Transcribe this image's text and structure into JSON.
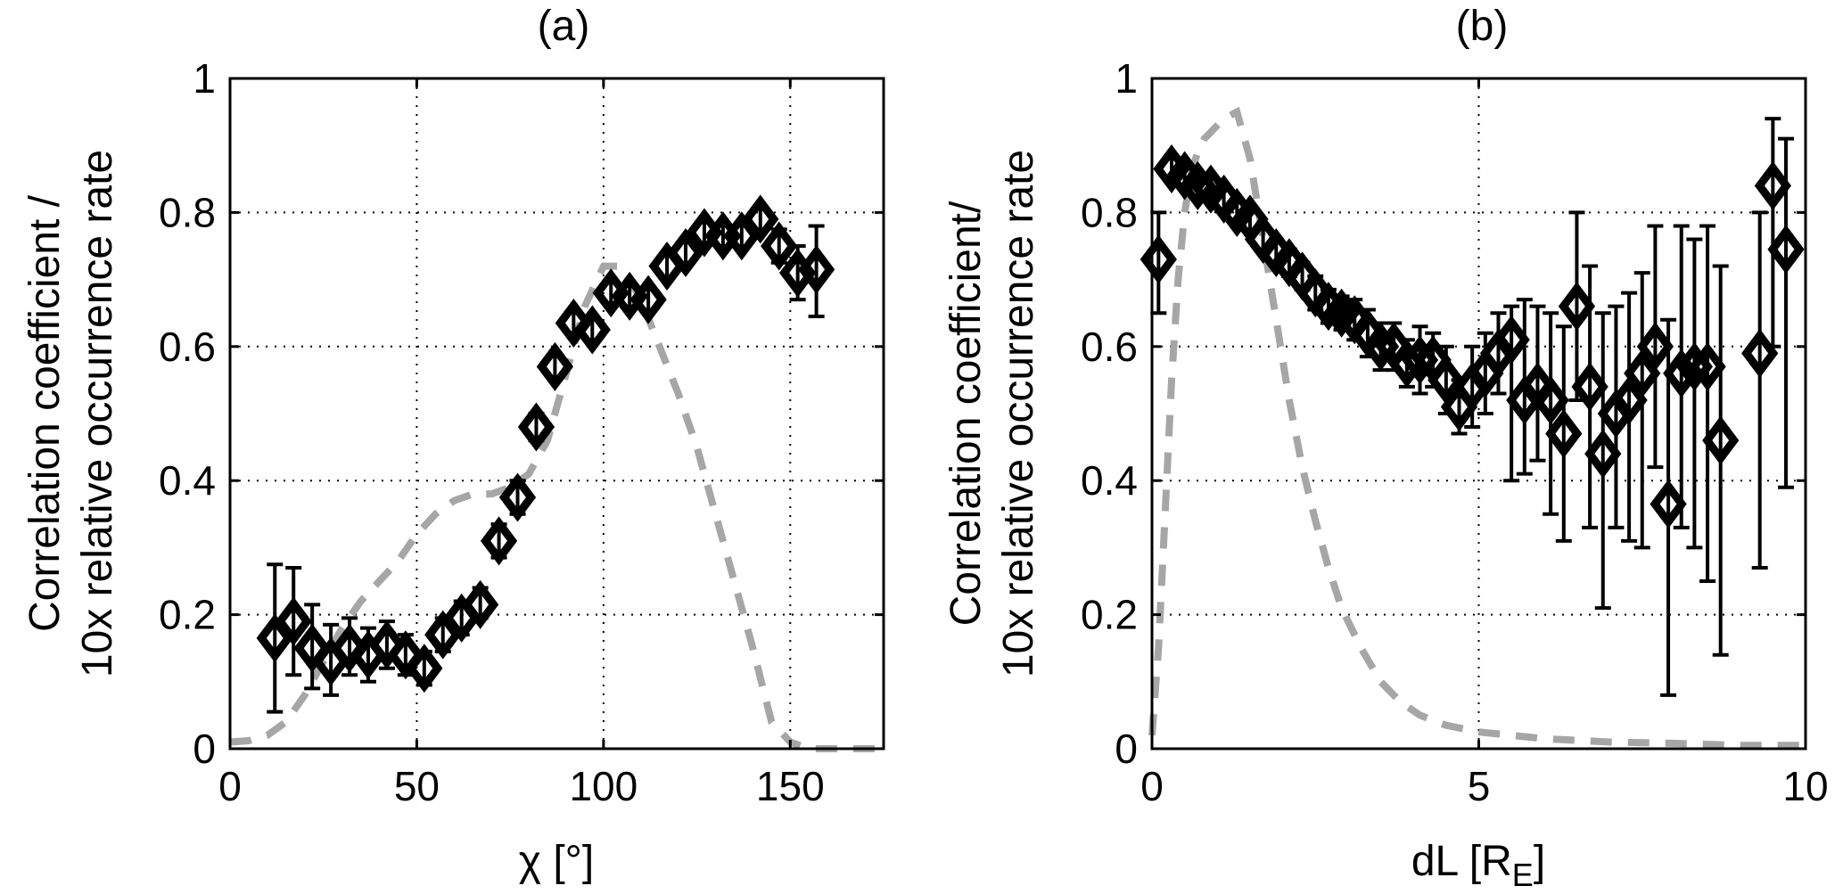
{
  "chart_data": [
    {
      "type": "scatter",
      "panel": "(a)",
      "title": "(a)",
      "xlabel": "χ [°]",
      "ylabel_line1": "Correlation coefficient /",
      "ylabel_line2": "10x relative occurrence rate",
      "xlim": [
        0,
        175
      ],
      "ylim": [
        0,
        1
      ],
      "x_ticks": [
        0,
        50,
        100,
        150
      ],
      "x_tick_labels": [
        "0",
        "50",
        "100",
        "150"
      ],
      "y_ticks": [
        0,
        0.2,
        0.4,
        0.6,
        0.8,
        1
      ],
      "y_tick_labels": [
        "0",
        "0.2",
        "0.4",
        "0.6",
        "0.8",
        "1"
      ],
      "grid": true,
      "series": [
        {
          "name": "correlation coefficient",
          "style": "diamond markers with error bars",
          "x": [
            12,
            17,
            22,
            27,
            32,
            37,
            42,
            47,
            52,
            57,
            62,
            67,
            72,
            77,
            82,
            87,
            92,
            97,
            102,
            107,
            112,
            117,
            122,
            127,
            132,
            137,
            142,
            147,
            152,
            157
          ],
          "y": [
            0.165,
            0.19,
            0.15,
            0.13,
            0.15,
            0.14,
            0.155,
            0.14,
            0.12,
            0.17,
            0.195,
            0.215,
            0.31,
            0.375,
            0.48,
            0.57,
            0.635,
            0.625,
            0.68,
            0.675,
            0.67,
            0.72,
            0.74,
            0.77,
            0.765,
            0.765,
            0.79,
            0.75,
            0.71,
            0.715
          ],
          "lower": [
            0.055,
            0.11,
            0.09,
            0.08,
            0.11,
            0.1,
            0.12,
            0.11,
            0.095,
            0.145,
            0.17,
            0.195,
            0.285,
            0.35,
            0.46,
            0.555,
            0.62,
            0.61,
            0.665,
            0.66,
            0.655,
            0.705,
            0.725,
            0.755,
            0.75,
            0.75,
            0.775,
            0.725,
            0.67,
            0.645
          ],
          "upper": [
            0.275,
            0.27,
            0.215,
            0.185,
            0.195,
            0.18,
            0.19,
            0.17,
            0.145,
            0.195,
            0.22,
            0.24,
            0.335,
            0.4,
            0.5,
            0.585,
            0.65,
            0.64,
            0.695,
            0.69,
            0.685,
            0.735,
            0.755,
            0.785,
            0.78,
            0.78,
            0.805,
            0.775,
            0.75,
            0.78
          ]
        },
        {
          "name": "10x relative occurrence rate",
          "style": "grey dashed line",
          "x": [
            0,
            5,
            10,
            15,
            20,
            25,
            30,
            35,
            40,
            45,
            50,
            55,
            60,
            65,
            70,
            75,
            80,
            85,
            90,
            95,
            100,
            105,
            110,
            115,
            120,
            125,
            130,
            135,
            140,
            145,
            150,
            155,
            160,
            165,
            170,
            175
          ],
          "y": [
            0.01,
            0.012,
            0.02,
            0.04,
            0.08,
            0.13,
            0.18,
            0.22,
            0.25,
            0.28,
            0.32,
            0.35,
            0.37,
            0.38,
            0.38,
            0.39,
            0.41,
            0.46,
            0.56,
            0.66,
            0.72,
            0.72,
            0.67,
            0.6,
            0.53,
            0.45,
            0.35,
            0.25,
            0.15,
            0.04,
            0.01,
            0.0,
            0.0,
            0.0,
            0.0,
            0.0
          ]
        }
      ]
    },
    {
      "type": "scatter",
      "panel": "(b)",
      "title": "(b)",
      "xlabel": "dL [R",
      "xlabel_sub": "E",
      "xlabel_suffix": "]",
      "ylabel_line1": "Correlation coefficient/",
      "ylabel_line2": "10x relative occurrence rate",
      "xlim": [
        0,
        10
      ],
      "ylim": [
        0,
        1
      ],
      "x_ticks": [
        0,
        5,
        10
      ],
      "x_tick_labels": [
        "0",
        "5",
        "10"
      ],
      "y_ticks": [
        0,
        0.2,
        0.4,
        0.6,
        0.8,
        1
      ],
      "y_tick_labels": [
        "0",
        "0.2",
        "0.4",
        "0.6",
        "0.8",
        "1"
      ],
      "grid": true,
      "series": [
        {
          "name": "correlation coefficient",
          "style": "diamond markers with error bars",
          "x": [
            0.1,
            0.3,
            0.5,
            0.7,
            0.9,
            1.1,
            1.3,
            1.5,
            1.7,
            1.9,
            2.1,
            2.3,
            2.5,
            2.7,
            2.9,
            3.1,
            3.3,
            3.5,
            3.7,
            3.9,
            4.1,
            4.3,
            4.5,
            4.7,
            4.9,
            5.1,
            5.3,
            5.5,
            5.7,
            5.9,
            6.1,
            6.3,
            6.5,
            6.7,
            6.9,
            7.1,
            7.3,
            7.5,
            7.7,
            7.9,
            8.1,
            8.3,
            8.5,
            8.7,
            9.3,
            9.5,
            9.7
          ],
          "y": [
            0.73,
            0.865,
            0.855,
            0.84,
            0.835,
            0.82,
            0.8,
            0.79,
            0.76,
            0.74,
            0.725,
            0.705,
            0.68,
            0.66,
            0.65,
            0.64,
            0.62,
            0.6,
            0.6,
            0.575,
            0.58,
            0.58,
            0.55,
            0.51,
            0.54,
            0.56,
            0.59,
            0.61,
            0.52,
            0.54,
            0.52,
            0.47,
            0.66,
            0.54,
            0.44,
            0.5,
            0.52,
            0.56,
            0.6,
            0.365,
            0.56,
            0.57,
            0.57,
            0.46,
            0.59,
            0.84,
            0.745
          ],
          "lower": [
            0.65,
            0.85,
            0.84,
            0.825,
            0.82,
            0.805,
            0.785,
            0.775,
            0.745,
            0.725,
            0.705,
            0.685,
            0.655,
            0.635,
            0.625,
            0.61,
            0.585,
            0.565,
            0.565,
            0.54,
            0.53,
            0.54,
            0.5,
            0.47,
            0.48,
            0.5,
            0.53,
            0.4,
            0.41,
            0.43,
            0.35,
            0.31,
            0.52,
            0.33,
            0.21,
            0.33,
            0.31,
            0.3,
            0.42,
            0.08,
            0.33,
            0.3,
            0.25,
            0.14,
            0.27,
            0.6,
            0.39
          ],
          "upper": [
            0.8,
            0.88,
            0.87,
            0.855,
            0.85,
            0.835,
            0.815,
            0.805,
            0.775,
            0.755,
            0.745,
            0.725,
            0.705,
            0.685,
            0.675,
            0.67,
            0.655,
            0.635,
            0.635,
            0.61,
            0.63,
            0.62,
            0.6,
            0.55,
            0.6,
            0.62,
            0.65,
            0.66,
            0.67,
            0.66,
            0.65,
            0.63,
            0.8,
            0.72,
            0.65,
            0.66,
            0.68,
            0.71,
            0.78,
            0.64,
            0.78,
            0.76,
            0.78,
            0.72,
            0.8,
            0.94,
            0.91
          ]
        },
        {
          "name": "10x relative occurrence rate",
          "style": "grey dashed line",
          "x": [
            0,
            0.1,
            0.2,
            0.3,
            0.4,
            0.5,
            0.6,
            0.7,
            0.8,
            0.9,
            1.0,
            1.1,
            1.2,
            1.3,
            1.5,
            1.7,
            1.9,
            2.1,
            2.3,
            2.5,
            2.7,
            2.9,
            3.2,
            3.5,
            3.8,
            4.1,
            4.5,
            5.0,
            5.5,
            6.0,
            7.0,
            8.0,
            9.0,
            10.0
          ],
          "y": [
            0.02,
            0.15,
            0.35,
            0.55,
            0.7,
            0.8,
            0.86,
            0.89,
            0.91,
            0.92,
            0.93,
            0.94,
            0.945,
            0.95,
            0.88,
            0.76,
            0.64,
            0.52,
            0.42,
            0.34,
            0.27,
            0.21,
            0.15,
            0.1,
            0.07,
            0.05,
            0.035,
            0.025,
            0.02,
            0.015,
            0.01,
            0.008,
            0.005,
            0.005
          ]
        }
      ]
    }
  ]
}
